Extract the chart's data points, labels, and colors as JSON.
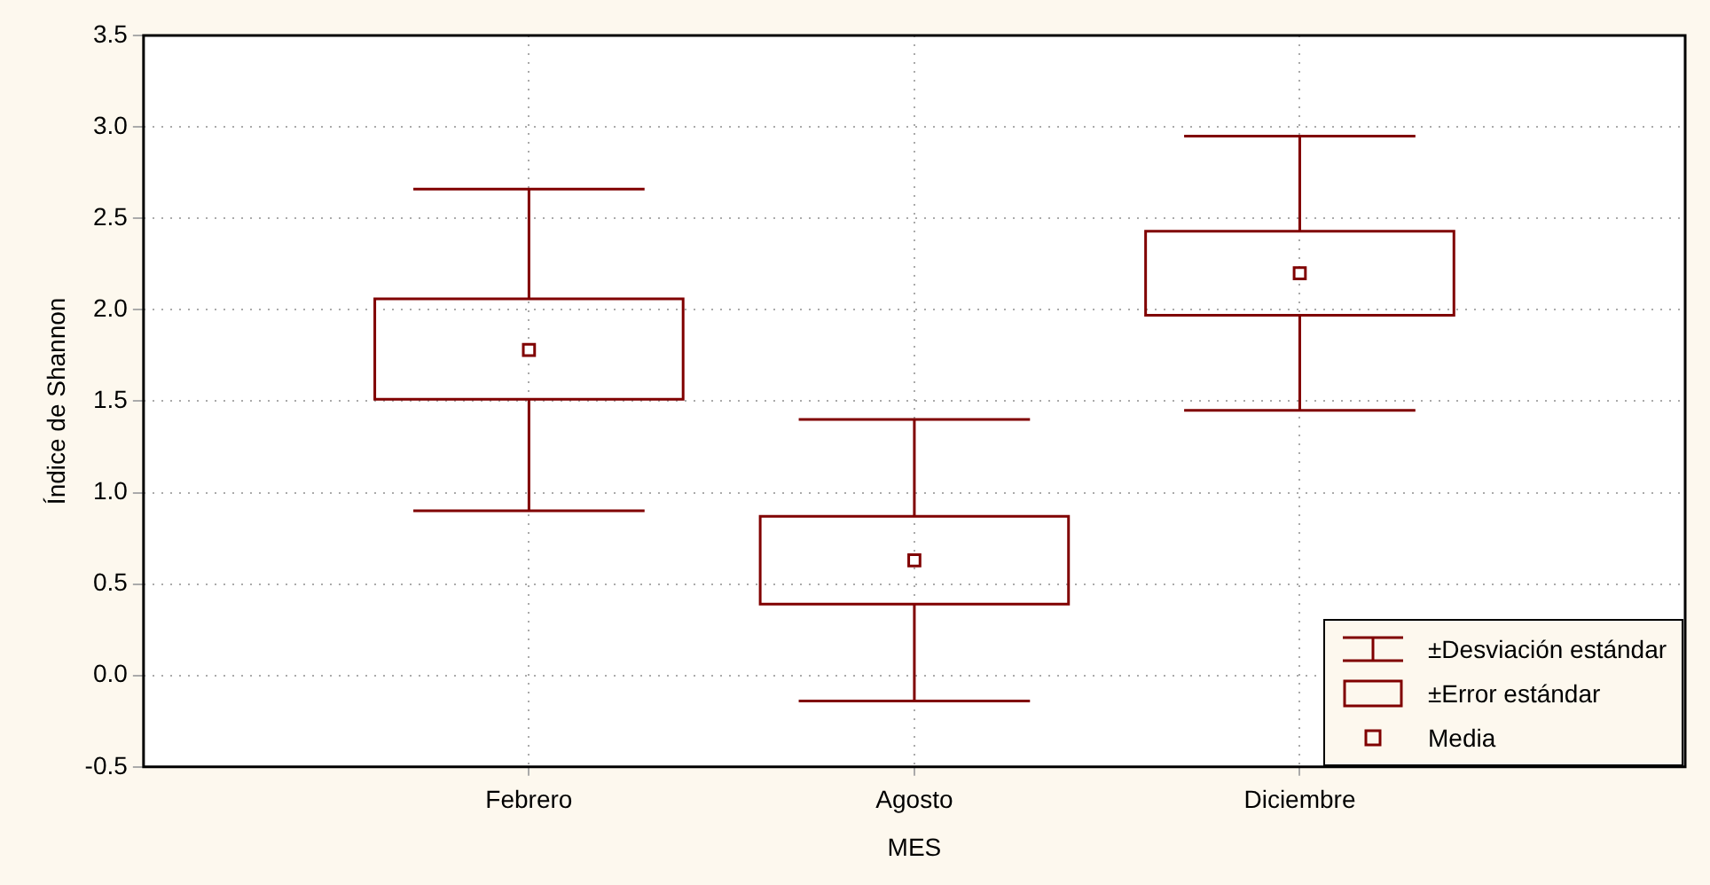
{
  "chart_data": {
    "type": "box",
    "xlabel": "MES",
    "ylabel": "Índice de Shannon",
    "categories": [
      "Febrero",
      "Agosto",
      "Diciembre"
    ],
    "series": [
      {
        "color": "#800000",
        "boxes": [
          {
            "low": 0.9,
            "q1": 1.51,
            "median": 1.78,
            "q3": 2.06,
            "high": 2.66
          },
          {
            "low": -0.14,
            "q1": 0.39,
            "median": 0.63,
            "q3": 0.87,
            "high": 1.4
          },
          {
            "low": 1.45,
            "q1": 1.97,
            "median": 2.2,
            "q3": 2.43,
            "high": 2.95
          }
        ]
      }
    ],
    "ylim": [
      -0.5,
      3.5
    ],
    "yticks": [
      {
        "value": -0.5,
        "label": "-0.5"
      },
      {
        "value": 0,
        "label": "0.0"
      },
      {
        "value": 0.5,
        "label": "0.5"
      },
      {
        "value": 1,
        "label": "1.0"
      },
      {
        "value": 1.5,
        "label": "1.5"
      },
      {
        "value": 2,
        "label": "2.0"
      },
      {
        "value": 2.5,
        "label": "2.5"
      },
      {
        "value": 3,
        "label": "3.0"
      },
      {
        "value": 3.5,
        "label": "3.5"
      }
    ],
    "grid": true,
    "marker": "square",
    "annotations": [
      "±Desviación estándar",
      "±Error estándar",
      "Media"
    ]
  }
}
